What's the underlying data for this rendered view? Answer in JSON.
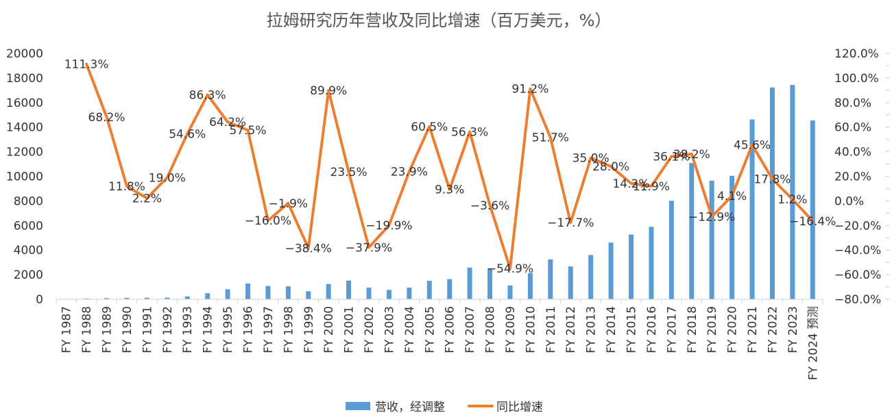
{
  "chart_data": {
    "type": "bar+line",
    "title": "拉姆研究历年营收及同比增速（百万美元，%）",
    "categories": [
      "FY 1987",
      "FY 1988",
      "FY 1989",
      "FY 1990",
      "FY 1991",
      "FY 1992",
      "FY 1993",
      "FY 1994",
      "FY 1995",
      "FY 1996",
      "FY 1997",
      "FY 1998",
      "FY 1999",
      "FY 2000",
      "FY 2001",
      "FY 2002",
      "FY 2003",
      "FY 2004",
      "FY 2005",
      "FY 2006",
      "FY 2007",
      "FY 2008",
      "FY 2009",
      "FY 2010",
      "FY 2011",
      "FY 2012",
      "FY 2013",
      "FY 2014",
      "FY 2015",
      "FY 2016",
      "FY 2017",
      "FY 2018",
      "FY 2019",
      "FY 2020",
      "FY 2021",
      "FY 2022",
      "FY 2023",
      "FY 2024 预测"
    ],
    "series": [
      {
        "name": "营收，经调整",
        "type": "bar",
        "axis": "left",
        "color": "#5b9bd5",
        "values": [
          30,
          60,
          90,
          110,
          120,
          130,
          230,
          490,
          810,
          1280,
          1080,
          1050,
          650,
          1230,
          1520,
          940,
          760,
          940,
          1500,
          1640,
          2570,
          2470,
          1120,
          2130,
          3240,
          2670,
          3600,
          4610,
          5260,
          5890,
          8010,
          11080,
          9650,
          10040,
          14630,
          17230,
          17430,
          14550
        ]
      },
      {
        "name": "同比增速",
        "type": "line",
        "axis": "right",
        "color": "#ed7d31",
        "values": [
          null,
          111.3,
          68.2,
          11.8,
          2.2,
          19.0,
          54.6,
          86.3,
          64.2,
          57.5,
          -16.0,
          -1.9,
          -38.4,
          89.9,
          23.5,
          -37.9,
          -19.9,
          23.9,
          60.5,
          9.3,
          56.3,
          -3.6,
          -54.9,
          91.2,
          51.7,
          -17.7,
          35.0,
          28.0,
          14.2,
          11.9,
          36.1,
          38.2,
          -12.9,
          4.1,
          45.6,
          17.8,
          1.2,
          -16.4
        ],
        "labels": [
          "",
          "111.3%",
          "68.2%",
          "11.8%",
          "2.2%",
          "19.0%",
          "54.6%",
          "86.3%",
          "64.2%",
          "57.5%",
          "−16.0%",
          "−1.9%",
          "−38.4%",
          "89.9%",
          "23.5%",
          "−37.9%",
          "−19.9%",
          "23.9%",
          "60.5%",
          "9.3%",
          "56.3%",
          "−3.6%",
          "−54.9%",
          "91.2%",
          "51.7%",
          "−17.7%",
          "35.0%",
          "28.0%",
          "14.2%",
          "11.9%",
          "36.1%",
          "38.2%",
          "−12.9%",
          "4.1%",
          "45.6%",
          "17.8%",
          "1.2%",
          "−16.4%"
        ]
      }
    ],
    "y_left": {
      "min": 0,
      "max": 20000,
      "step": 2000,
      "ticks": [
        "0",
        "2000",
        "4000",
        "6000",
        "8000",
        "10000",
        "12000",
        "14000",
        "16000",
        "18000",
        "20000"
      ]
    },
    "y_right": {
      "min": -80,
      "max": 120,
      "step": 20,
      "ticks": [
        "−80.0%",
        "−60.0%",
        "−40.0%",
        "−20.0%",
        "0.0%",
        "20.0%",
        "40.0%",
        "60.0%",
        "80.0%",
        "100.0%",
        "120.0%"
      ]
    },
    "legend": {
      "position": "bottom",
      "items": [
        "营收，经调整",
        "同比增速"
      ]
    },
    "grid": false
  }
}
